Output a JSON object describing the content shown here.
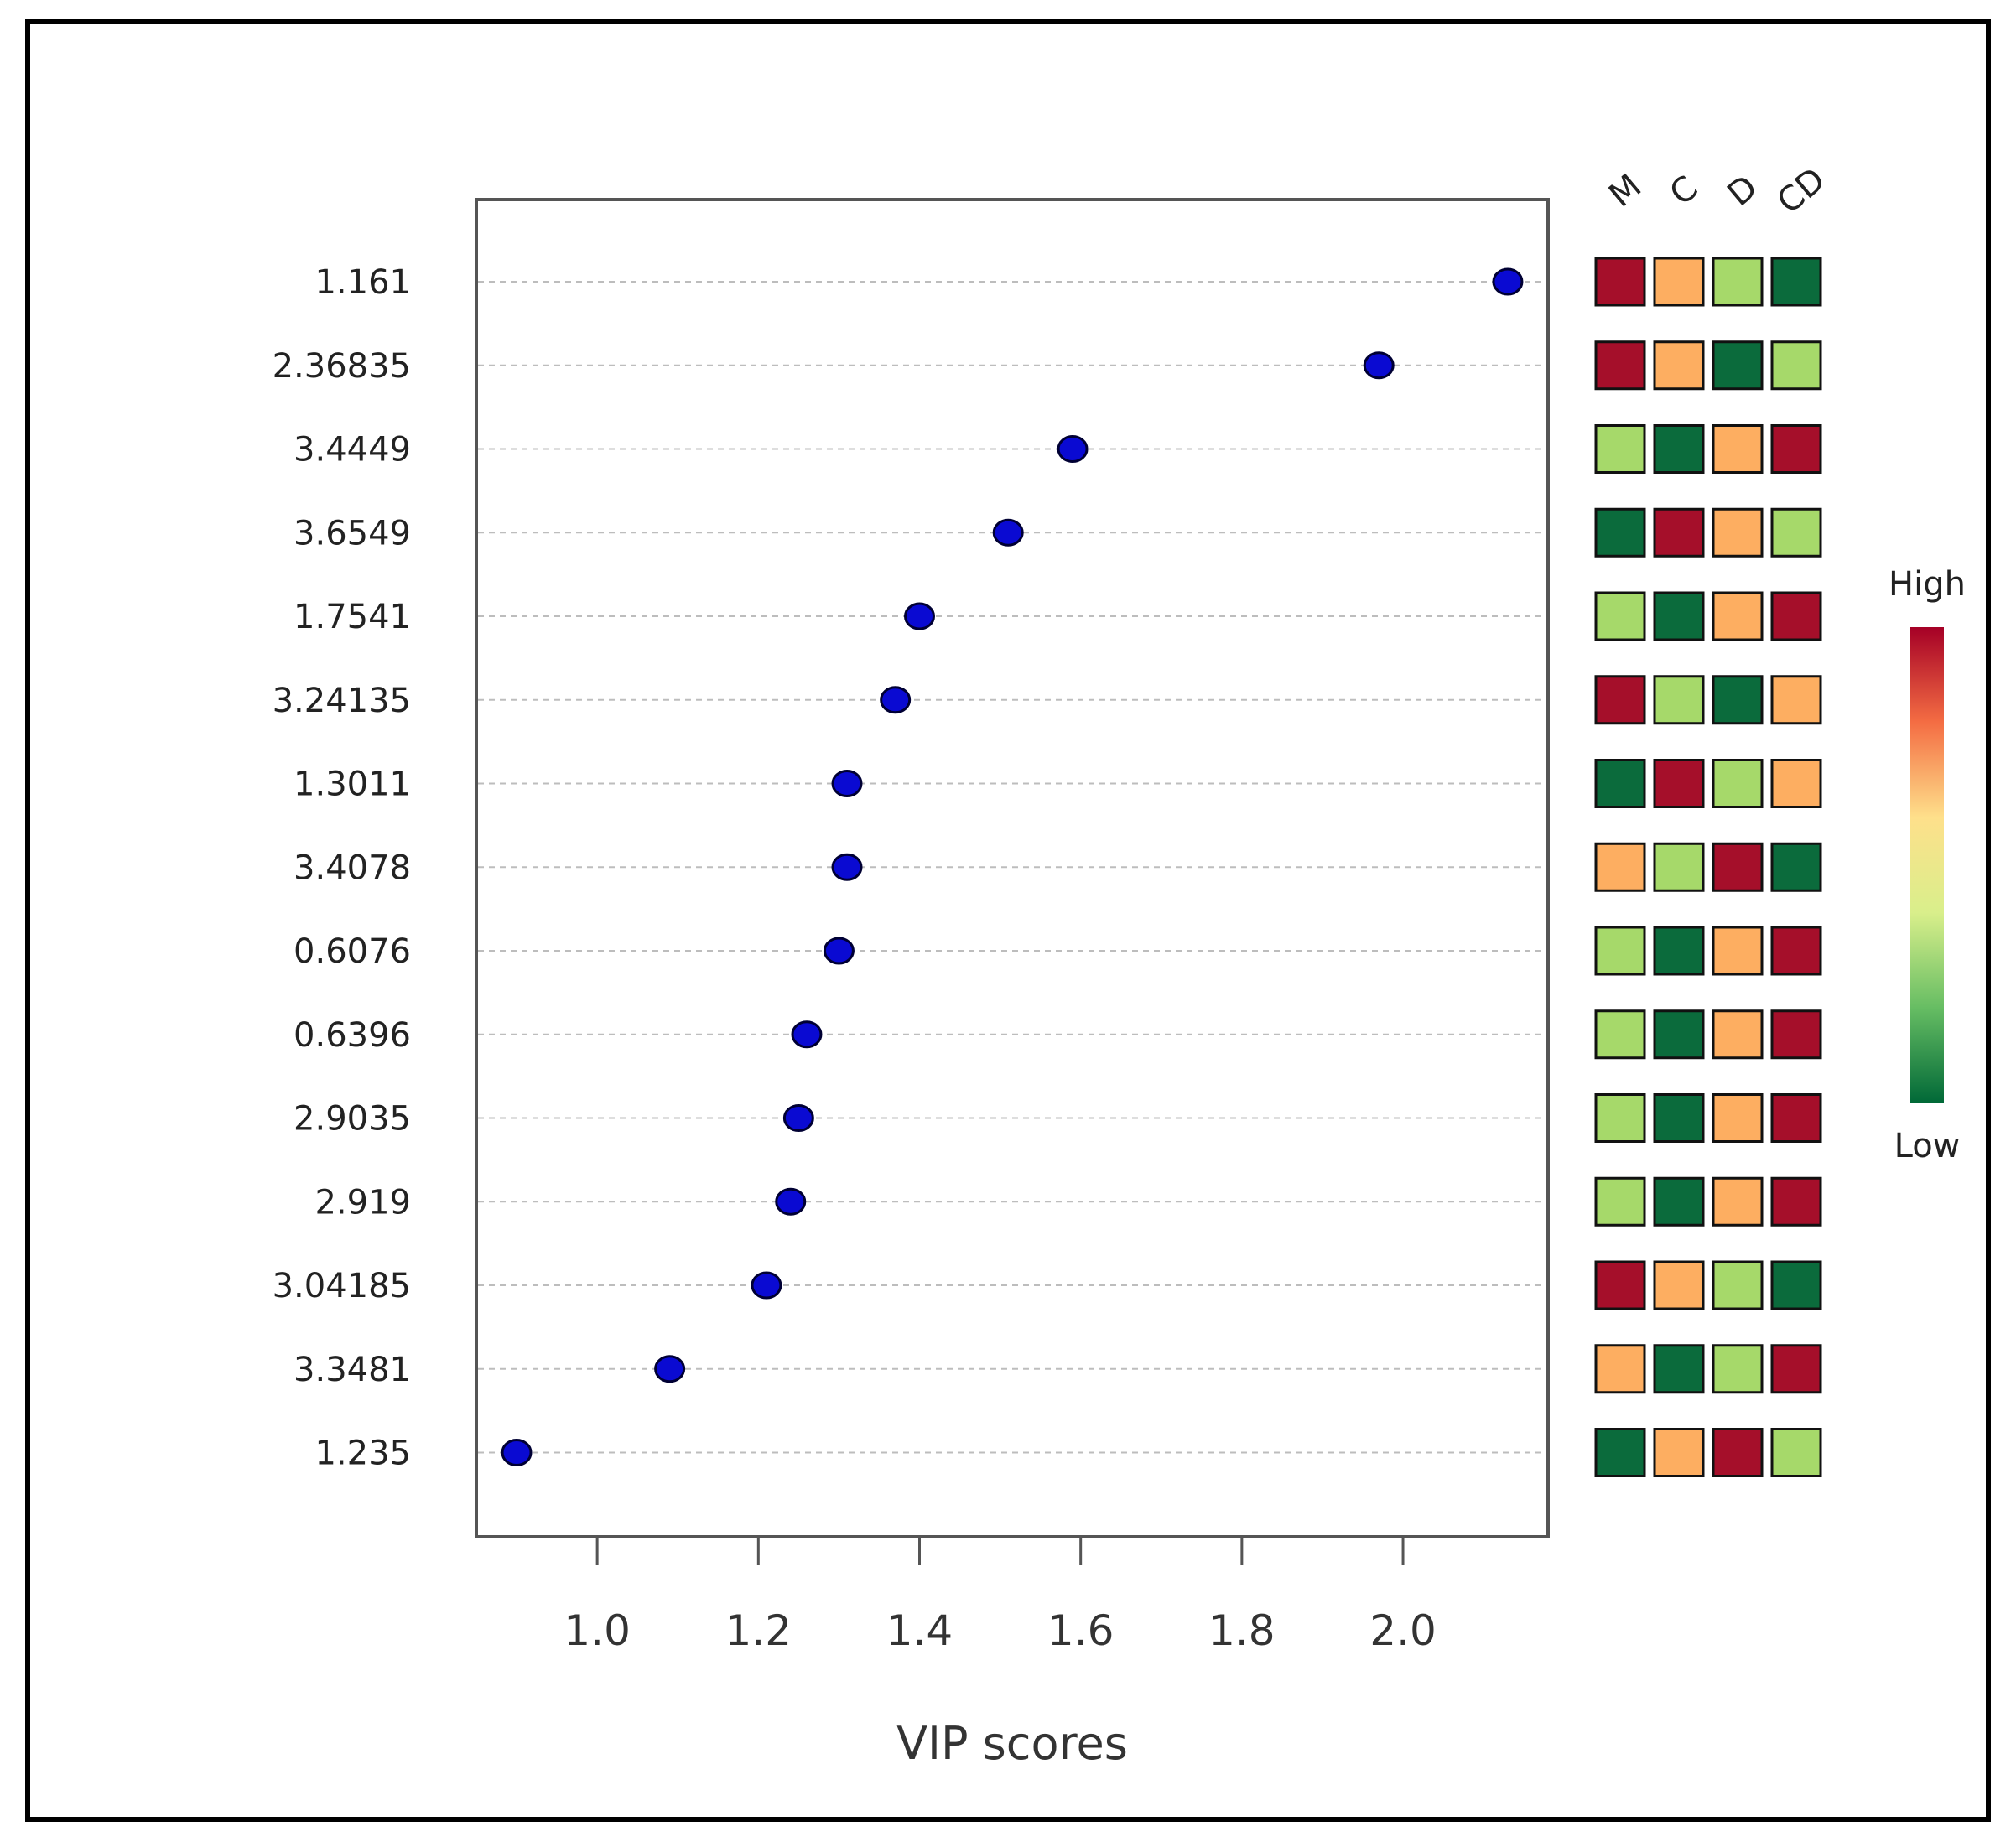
{
  "chart_data": {
    "type": "scatter",
    "xlabel": "VIP scores",
    "ylabel": "",
    "xlim": [
      0.85,
      2.18
    ],
    "xticks": [
      1.0,
      1.2,
      1.4,
      1.6,
      1.8,
      2.0
    ],
    "xtick_labels": [
      "1.0",
      "1.2",
      "1.4",
      "1.6",
      "1.8",
      "2.0"
    ],
    "grid": "horizontal dashed",
    "features": [
      "1.161",
      "2.36835",
      "3.4449",
      "3.6549",
      "1.7541",
      "3.24135",
      "1.3011",
      "3.4078",
      "0.6076",
      "0.6396",
      "2.9035",
      "2.919",
      "3.04185",
      "3.3481",
      "1.235"
    ],
    "vip_scores": [
      2.13,
      1.97,
      1.59,
      1.51,
      1.4,
      1.37,
      1.31,
      1.31,
      1.3,
      1.26,
      1.25,
      1.24,
      1.21,
      1.09,
      0.9
    ],
    "point_color": "#0a0ad2",
    "heatmap": {
      "groups": [
        "M",
        "C",
        "D",
        "CD"
      ],
      "levels": [
        [
          4,
          3,
          2,
          1
        ],
        [
          4,
          3,
          1,
          2
        ],
        [
          2,
          1,
          3,
          4
        ],
        [
          1,
          4,
          3,
          2
        ],
        [
          2,
          1,
          3,
          4
        ],
        [
          4,
          2,
          1,
          3
        ],
        [
          1,
          4,
          2,
          3
        ],
        [
          3,
          2,
          4,
          1
        ],
        [
          2,
          1,
          3,
          4
        ],
        [
          2,
          1,
          3,
          4
        ],
        [
          2,
          1,
          3,
          4
        ],
        [
          2,
          1,
          3,
          4
        ],
        [
          4,
          3,
          2,
          1
        ],
        [
          3,
          1,
          2,
          4
        ],
        [
          1,
          3,
          4,
          2
        ]
      ],
      "level_colors": {
        "1": "#0b6b3c",
        "2": "#a6d96a",
        "3": "#fdae61",
        "4": "#a50f2a"
      },
      "legend_high": "High",
      "legend_low": "Low",
      "legend_gradient": [
        "#a50026",
        "#f46d43",
        "#fee08b",
        "#d9ef8b",
        "#66bd63",
        "#006837"
      ]
    }
  }
}
